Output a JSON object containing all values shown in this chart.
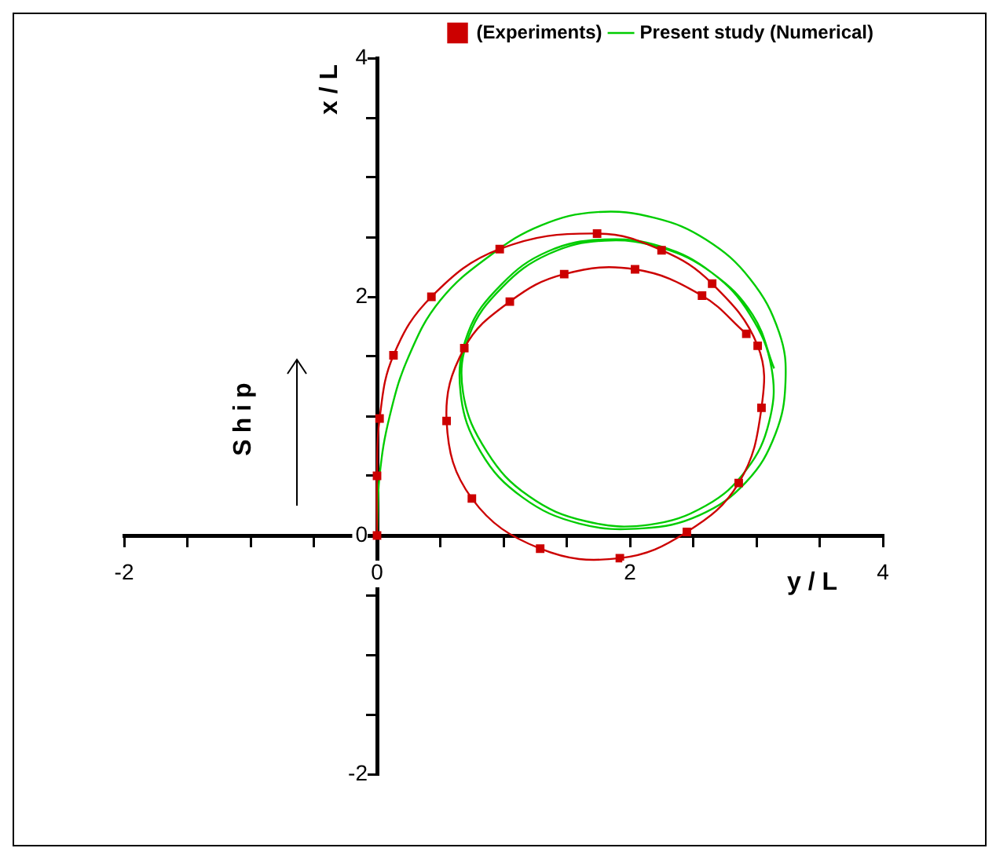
{
  "chart_data": {
    "type": "line",
    "xlabel": "y / L",
    "ylabel": "x / L",
    "legend": "top right",
    "grid": false,
    "annotations": [
      "Ship"
    ],
    "xlim": [
      -2,
      4
    ],
    "ylim": [
      -2,
      4
    ],
    "xticks": [
      -2,
      {
        "value": -1.5,
        "label": null
      },
      {
        "value": -1,
        "label": null
      },
      {
        "value": -0.5,
        "label": null
      },
      0,
      {
        "value": 0.5,
        "label": null
      },
      {
        "value": 1,
        "label": null
      },
      {
        "value": 1.5,
        "label": null
      },
      2,
      {
        "value": 2.5,
        "label": null
      },
      {
        "value": 3,
        "label": null
      },
      {
        "value": 3.5,
        "label": null
      },
      4
    ],
    "yticks": [
      -2,
      {
        "value": -1.5,
        "label": null
      },
      {
        "value": -1,
        "label": null
      },
      {
        "value": -0.5,
        "label": null
      },
      0,
      {
        "value": 0.5,
        "label": null
      },
      {
        "value": 1,
        "label": null
      },
      {
        "value": 1.5,
        "label": null
      },
      2,
      {
        "value": 2.5,
        "label": null
      },
      {
        "value": 3,
        "label": null
      },
      {
        "value": 3.5,
        "label": null
      },
      4
    ],
    "series": [
      {
        "name": "(Experiments)",
        "color": "#cc0000",
        "marker": "square",
        "x": [
          0,
          0,
          0.02,
          0.13,
          0.43,
          0.97,
          1.74,
          2.25,
          2.65,
          3.01,
          3.04,
          2.86,
          2.45,
          1.92,
          1.29,
          0.75,
          0.55,
          0.69,
          1.05,
          1.48,
          2.04,
          2.57,
          2.92
        ],
        "values": [
          0,
          0.5,
          0.98,
          1.51,
          2.0,
          2.4,
          2.53,
          2.39,
          2.11,
          1.59,
          1.07,
          0.44,
          0.03,
          -0.19,
          -0.11,
          0.31,
          0.96,
          1.57,
          1.96,
          2.19,
          2.23,
          2.01,
          1.69
        ]
      },
      {
        "name": "Present study (Numerical)",
        "color": "#00cc00",
        "marker": "none",
        "x": [
          0,
          0.02,
          0.1,
          0.25,
          0.5,
          0.9,
          1.3,
          1.74,
          2.2,
          2.6,
          2.95,
          3.18,
          3.23,
          3.15,
          2.92,
          2.55,
          2.1,
          1.6,
          1.15,
          0.82,
          0.66,
          0.72,
          0.98,
          1.35,
          1.8,
          2.25,
          2.65,
          2.95,
          3.12,
          3.1,
          2.92,
          2.6,
          2.15,
          1.65,
          1.2,
          0.87,
          0.68,
          0.73,
          0.99,
          1.36,
          1.8,
          2.25,
          2.65,
          2.97,
          3.14
        ],
        "values": [
          0,
          0.5,
          1.0,
          1.5,
          1.97,
          2.35,
          2.6,
          2.71,
          2.66,
          2.48,
          2.15,
          1.7,
          1.29,
          0.85,
          0.45,
          0.17,
          0.06,
          0.1,
          0.32,
          0.7,
          1.2,
          1.7,
          2.1,
          2.38,
          2.48,
          2.42,
          2.2,
          1.85,
          1.4,
          0.95,
          0.55,
          0.25,
          0.09,
          0.12,
          0.33,
          0.7,
          1.2,
          1.68,
          2.08,
          2.36,
          2.47,
          2.41,
          2.2,
          1.85,
          1.4
        ]
      }
    ]
  }
}
